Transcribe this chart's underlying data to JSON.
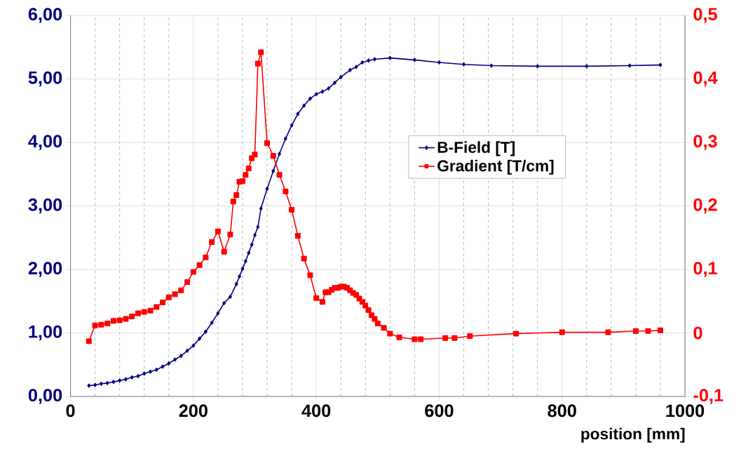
{
  "chart_data": {
    "type": "line",
    "xlabel": "position [mm]",
    "xlim": [
      0,
      1000
    ],
    "xticks": [
      0,
      {
        "value": 40,
        "label": null
      },
      {
        "value": 80,
        "label": null
      },
      {
        "value": 120,
        "label": null
      },
      {
        "value": 160,
        "label": null
      },
      200,
      {
        "value": 240,
        "label": null
      },
      {
        "value": 280,
        "label": null
      },
      {
        "value": 320,
        "label": null
      },
      {
        "value": 360,
        "label": null
      },
      400,
      {
        "value": 440,
        "label": null
      },
      {
        "value": 480,
        "label": null
      },
      {
        "value": 520,
        "label": null
      },
      {
        "value": 560,
        "label": null
      },
      600,
      {
        "value": 640,
        "label": null
      },
      {
        "value": 680,
        "label": null
      },
      {
        "value": 720,
        "label": null
      },
      {
        "value": 760,
        "label": null
      },
      800,
      {
        "value": 840,
        "label": null
      },
      {
        "value": 880,
        "label": null
      },
      {
        "value": 920,
        "label": null
      },
      {
        "value": 960,
        "label": null
      },
      1000
    ],
    "ylim": [
      0,
      6
    ],
    "yticks": [
      {
        "value": 0,
        "label": "0,00"
      },
      {
        "value": 1,
        "label": "1,00"
      },
      {
        "value": 2,
        "label": "2,00"
      },
      {
        "value": 3,
        "label": "3,00"
      },
      {
        "value": 4,
        "label": "4,00"
      },
      {
        "value": 5,
        "label": "5,00"
      },
      {
        "value": 6,
        "label": "6,00"
      }
    ],
    "y2lim": [
      -0.1,
      0.5
    ],
    "y2ticks": [
      {
        "value": -0.1,
        "label": "-0,1"
      },
      0,
      {
        "value": 0.1,
        "label": "0,1"
      },
      {
        "value": 0.2,
        "label": "0,2"
      },
      {
        "value": 0.3,
        "label": "0,3"
      },
      {
        "value": 0.4,
        "label": "0,4"
      },
      {
        "value": 0.5,
        "label": "0,5"
      }
    ],
    "grid": true,
    "legend": "right",
    "series": [
      {
        "name": "B-Field [T]",
        "color": "#000080",
        "marker": "diamond",
        "x": [
          30,
          40,
          50,
          60,
          70,
          80,
          90,
          100,
          110,
          120,
          130,
          140,
          150,
          160,
          170,
          180,
          190,
          200,
          210,
          220,
          230,
          240,
          250,
          260,
          270,
          275,
          280,
          285,
          290,
          295,
          300,
          305,
          310,
          320,
          330,
          340,
          350,
          360,
          370,
          380,
          390,
          400,
          410,
          420,
          430,
          440,
          455,
          465,
          475,
          485,
          495,
          520,
          560,
          600,
          640,
          685,
          760,
          840,
          910,
          960
        ],
        "values": [
          0.17,
          0.18,
          0.2,
          0.21,
          0.23,
          0.25,
          0.27,
          0.3,
          0.32,
          0.36,
          0.39,
          0.42,
          0.47,
          0.52,
          0.58,
          0.64,
          0.72,
          0.8,
          0.91,
          1.02,
          1.16,
          1.31,
          1.47,
          1.57,
          1.77,
          1.89,
          2.01,
          2.13,
          2.26,
          2.39,
          2.54,
          2.67,
          2.96,
          3.27,
          3.55,
          3.82,
          4.06,
          4.27,
          4.45,
          4.58,
          4.69,
          4.76,
          4.8,
          4.85,
          4.94,
          5.03,
          5.14,
          5.19,
          5.26,
          5.29,
          5.31,
          5.33,
          5.3,
          5.26,
          5.23,
          5.21,
          5.2,
          5.2,
          5.21,
          5.22
        ]
      },
      {
        "name": "Gradient [T/cm]",
        "color": "#ff0000",
        "marker": "square",
        "axis": "y2",
        "x": [
          30,
          40,
          50,
          60,
          70,
          80,
          90,
          100,
          110,
          120,
          130,
          140,
          150,
          160,
          170,
          180,
          190,
          200,
          210,
          220,
          230,
          240,
          250,
          260,
          265,
          270,
          275,
          280,
          285,
          290,
          295,
          300,
          305,
          310,
          320,
          330,
          340,
          350,
          360,
          370,
          380,
          390,
          400,
          410,
          415,
          420,
          425,
          430,
          435,
          440,
          445,
          450,
          455,
          460,
          465,
          470,
          475,
          480,
          485,
          490,
          495,
          500,
          510,
          520,
          535,
          560,
          570,
          610,
          625,
          650,
          725,
          800,
          875,
          920,
          940,
          960
        ],
        "values": [
          -0.013,
          0.012,
          0.013,
          0.015,
          0.019,
          0.02,
          0.022,
          0.026,
          0.031,
          0.033,
          0.035,
          0.041,
          0.048,
          0.056,
          0.061,
          0.067,
          0.08,
          0.096,
          0.107,
          0.119,
          0.143,
          0.16,
          0.128,
          0.155,
          0.207,
          0.217,
          0.238,
          0.239,
          0.249,
          0.259,
          0.275,
          0.281,
          0.424,
          0.442,
          0.299,
          0.279,
          0.249,
          0.223,
          0.194,
          0.153,
          0.117,
          0.091,
          0.055,
          0.049,
          0.064,
          0.064,
          0.068,
          0.071,
          0.071,
          0.073,
          0.073,
          0.071,
          0.067,
          0.063,
          0.06,
          0.054,
          0.049,
          0.043,
          0.036,
          0.028,
          0.022,
          0.015,
          0.008,
          -0.001,
          -0.007,
          -0.01,
          -0.01,
          -0.008,
          -0.008,
          -0.005,
          -0.001,
          0.001,
          0.001,
          0.003,
          0.003,
          0.004
        ]
      }
    ]
  }
}
